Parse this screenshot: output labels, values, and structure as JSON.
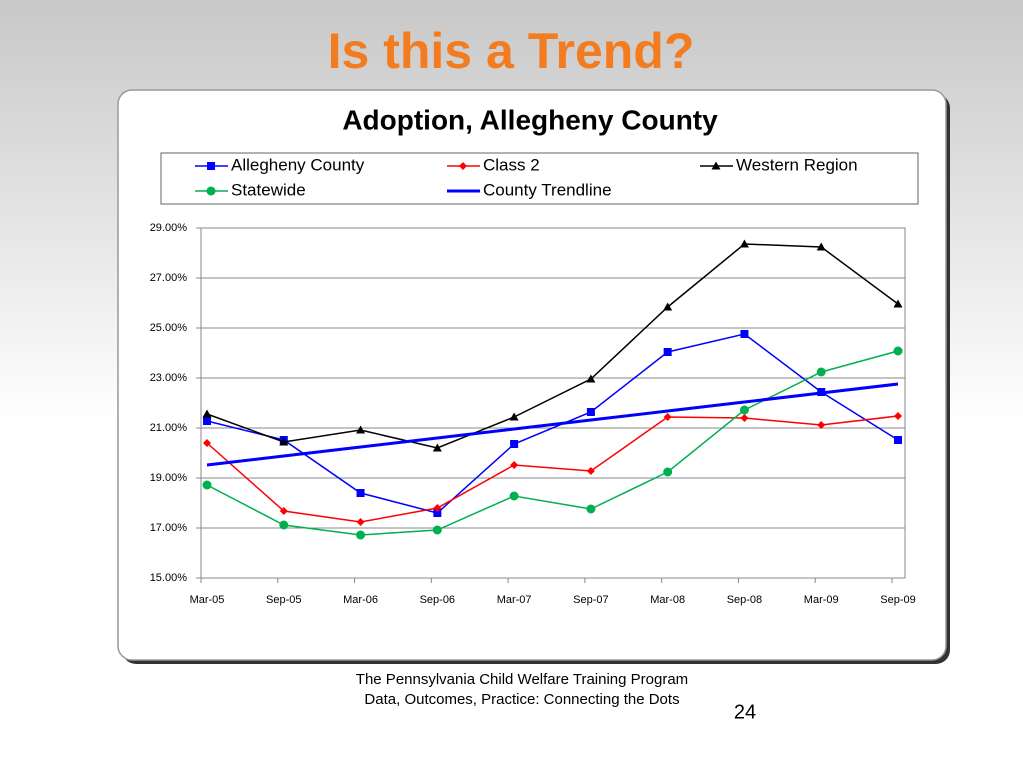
{
  "slide_title": "Is this a Trend?",
  "chart_data": {
    "type": "line",
    "title": "Adoption, Allegheny County",
    "categories": [
      "Mar-05",
      "Sep-05",
      "Mar-06",
      "Sep-06",
      "Mar-07",
      "Sep-07",
      "Mar-08",
      "Sep-08",
      "Mar-09",
      "Sep-09"
    ],
    "series": [
      {
        "name": "Allegheny County",
        "color": "#0000ff",
        "marker": "square",
        "values": [
          21.28,
          20.52,
          18.4,
          17.6,
          20.36,
          21.64,
          24.04,
          24.76,
          22.44,
          20.52
        ]
      },
      {
        "name": "Class 2",
        "color": "#ff0000",
        "marker": "diamond",
        "values": [
          20.4,
          17.68,
          17.24,
          17.8,
          19.52,
          19.28,
          21.44,
          21.4,
          21.12,
          21.48
        ]
      },
      {
        "name": "Western Region",
        "color": "#000000",
        "marker": "triangle",
        "values": [
          21.56,
          20.44,
          20.92,
          20.2,
          21.44,
          22.96,
          25.84,
          28.36,
          28.24,
          25.96
        ]
      },
      {
        "name": "Statewide",
        "color": "#00b050",
        "marker": "circle",
        "values": [
          18.72,
          17.12,
          16.72,
          16.92,
          18.28,
          17.76,
          19.24,
          21.72,
          23.24,
          24.08
        ]
      },
      {
        "name": "County Trendline",
        "color": "#0000ff",
        "marker": "none",
        "values": [
          19.52,
          19.88,
          20.24,
          20.6,
          20.96,
          21.32,
          21.68,
          22.04,
          22.4,
          22.76
        ]
      }
    ],
    "ylim": [
      15,
      29
    ],
    "yticks": [
      {
        "value": 15,
        "label": "15.00%"
      },
      {
        "value": 17,
        "label": "17.00%"
      },
      {
        "value": 19,
        "label": "19.00%"
      },
      {
        "value": 21,
        "label": "21.00%"
      },
      {
        "value": 23,
        "label": "23.00%"
      },
      {
        "value": 25,
        "label": "25.00%"
      },
      {
        "value": 27,
        "label": "27.00%"
      },
      {
        "value": 29,
        "label": "29.00%"
      }
    ],
    "grid": true
  },
  "footer": {
    "line1": "The Pennsylvania Child Welfare Training Program",
    "line2": "Data, Outcomes, Practice: Connecting the Dots",
    "page_number": "24"
  }
}
